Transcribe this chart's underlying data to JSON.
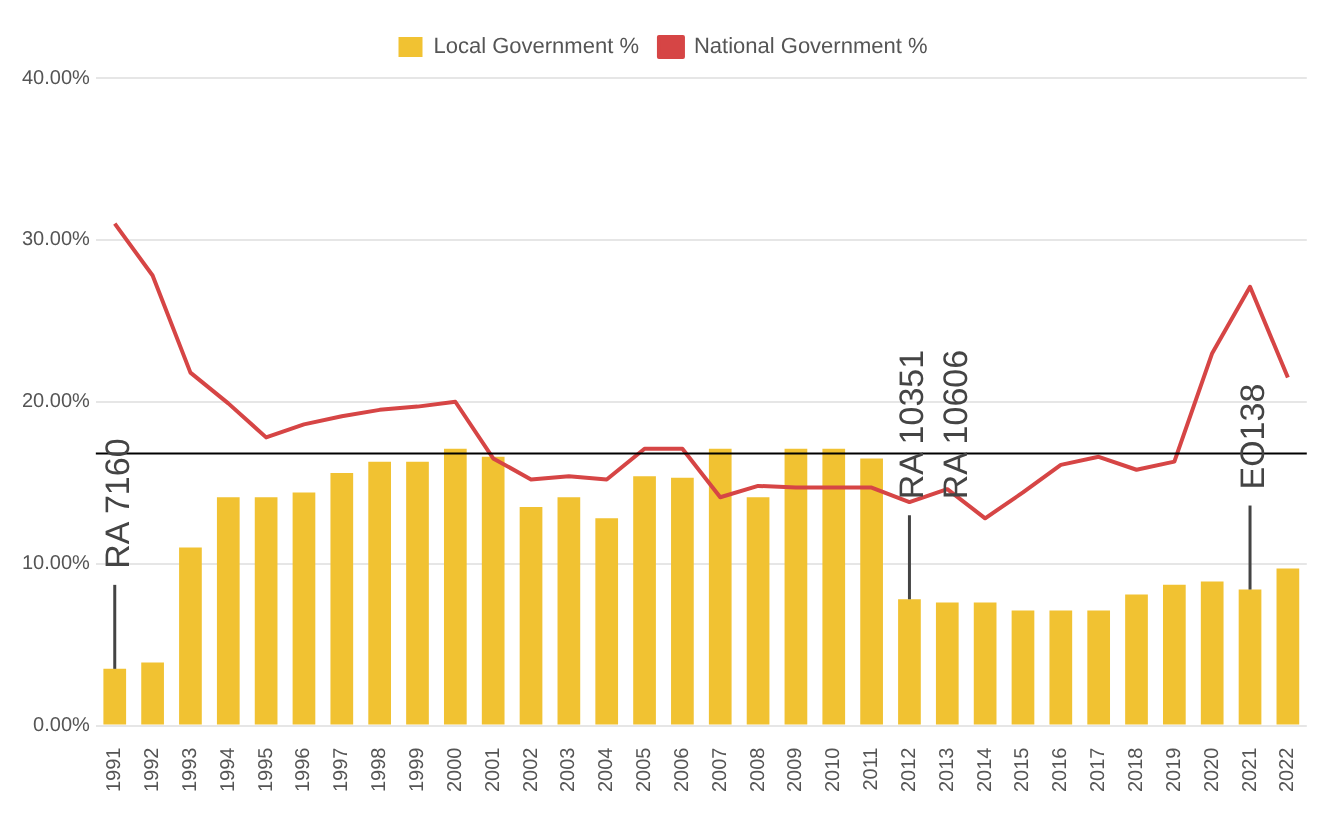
{
  "chart_data": {
    "type": "bar",
    "categories": [
      "1991",
      "1992",
      "1993",
      "1994",
      "1995",
      "1996",
      "1997",
      "1998",
      "1999",
      "2000",
      "2001",
      "2002",
      "2003",
      "2004",
      "2005",
      "2006",
      "2007",
      "2008",
      "2009",
      "2010",
      "2011",
      "2012",
      "2013",
      "2014",
      "2015",
      "2016",
      "2017",
      "2018",
      "2019",
      "2020",
      "2021",
      "2022"
    ],
    "series": [
      {
        "name": "Local Government %",
        "color": "#f1c232",
        "values": [
          3.5,
          3.9,
          11.0,
          14.1,
          14.1,
          14.4,
          15.6,
          16.3,
          16.3,
          17.1,
          16.6,
          13.5,
          14.1,
          12.8,
          15.4,
          15.3,
          17.1,
          14.1,
          17.1,
          17.1,
          16.5,
          7.8,
          7.6,
          7.6,
          7.1,
          7.1,
          7.1,
          8.1,
          8.7,
          8.9,
          8.4,
          9.7
        ]
      },
      {
        "name": "National Government %",
        "type": "line",
        "color": "#d64545",
        "values": [
          31.0,
          27.8,
          21.8,
          19.9,
          17.8,
          18.6,
          19.1,
          19.5,
          19.7,
          20.0,
          16.5,
          15.2,
          15.4,
          15.2,
          17.1,
          17.1,
          14.1,
          14.8,
          14.7,
          14.7,
          14.7,
          13.8,
          14.6,
          12.8,
          14.4,
          16.1,
          16.6,
          15.8,
          16.3,
          23.0,
          27.1,
          21.5
        ]
      }
    ],
    "ylim": [
      0,
      40
    ],
    "yticks": [
      {
        "value": 0,
        "label": "0.00%"
      },
      {
        "value": 10,
        "label": "10.00%"
      },
      {
        "value": 20,
        "label": "20.00%"
      },
      {
        "value": 30,
        "label": "30.00%"
      },
      {
        "value": 40,
        "label": "40.00%"
      }
    ],
    "grid": "y",
    "legend": "top",
    "marker": "none",
    "line_style": "solid",
    "ref_lines": [
      {
        "axis": "y",
        "value": 16.8,
        "color": "#000000"
      }
    ],
    "annotations": [
      {
        "text": "RA 7160",
        "x": "1991",
        "y": 3.5
      },
      {
        "text": "RA 10351",
        "x": "2012",
        "y": 7.8
      },
      {
        "text": "RA 10606",
        "x": "2012",
        "y": 7.8
      },
      {
        "text": "EO138",
        "x": "2021",
        "y": 8.4
      }
    ]
  }
}
